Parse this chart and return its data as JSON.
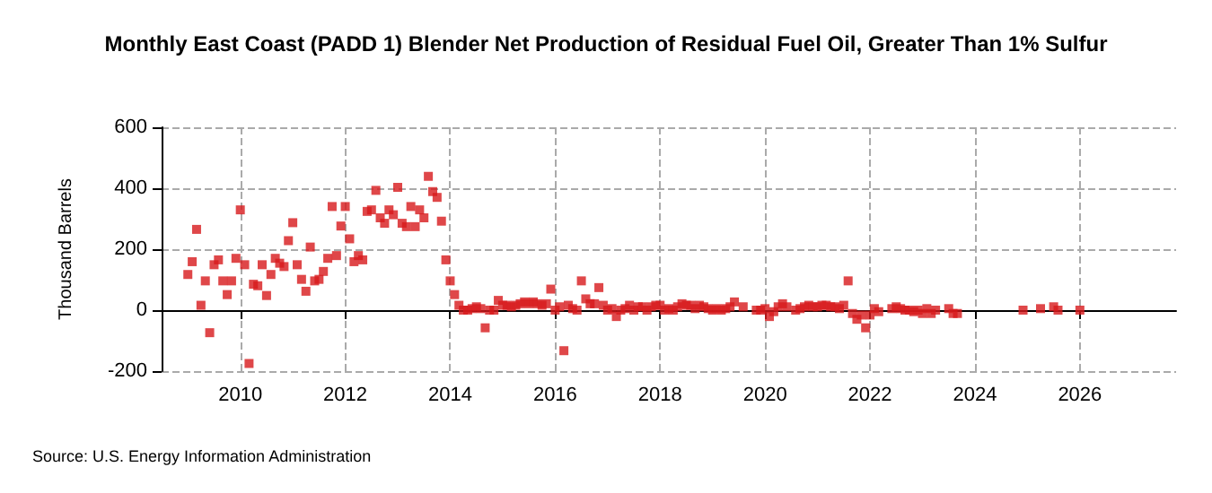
{
  "chart_data": {
    "type": "scatter",
    "title": "Monthly East Coast (PADD 1) Blender Net Production of Residual Fuel Oil, Greater Than 1% Sulfur",
    "ylabel": "Thousand Barrels",
    "annotations": [
      "Source: U.S. Energy Information Administration"
    ],
    "x": [
      "2009-01",
      "2009-02",
      "2009-03",
      "2009-04",
      "2009-05",
      "2009-06",
      "2009-07",
      "2009-08",
      "2009-09",
      "2009-10",
      "2009-11",
      "2009-12",
      "2010-01",
      "2010-02",
      "2010-03",
      "2010-04",
      "2010-05",
      "2010-06",
      "2010-07",
      "2010-08",
      "2010-09",
      "2010-10",
      "2010-11",
      "2010-12",
      "2011-01",
      "2011-02",
      "2011-03",
      "2011-04",
      "2011-05",
      "2011-06",
      "2011-07",
      "2011-08",
      "2011-09",
      "2011-10",
      "2011-11",
      "2011-12",
      "2012-01",
      "2012-02",
      "2012-03",
      "2012-04",
      "2012-05",
      "2012-06",
      "2012-07",
      "2012-08",
      "2012-09",
      "2012-10",
      "2012-11",
      "2012-12",
      "2013-01",
      "2013-02",
      "2013-03",
      "2013-04",
      "2013-05",
      "2013-06",
      "2013-07",
      "2013-08",
      "2013-09",
      "2013-10",
      "2013-11",
      "2013-12",
      "2014-01",
      "2014-02",
      "2014-03",
      "2014-04",
      "2014-05",
      "2014-06",
      "2014-07",
      "2014-08",
      "2014-09",
      "2014-10",
      "2014-11",
      "2014-12",
      "2015-01",
      "2015-02",
      "2015-03",
      "2015-04",
      "2015-05",
      "2015-06",
      "2015-07",
      "2015-08",
      "2015-09",
      "2015-10",
      "2015-11",
      "2015-12",
      "2016-01",
      "2016-02",
      "2016-03",
      "2016-04",
      "2016-05",
      "2016-06",
      "2016-07",
      "2016-08",
      "2016-09",
      "2016-10",
      "2016-11",
      "2016-12",
      "2017-01",
      "2017-02",
      "2017-03",
      "2017-04",
      "2017-05",
      "2017-06",
      "2017-07",
      "2017-08",
      "2017-09",
      "2017-10",
      "2017-11",
      "2017-12",
      "2018-01",
      "2018-02",
      "2018-03",
      "2018-04",
      "2018-05",
      "2018-06",
      "2018-07",
      "2018-08",
      "2018-09",
      "2018-10",
      "2018-11",
      "2018-12",
      "2019-01",
      "2019-02",
      "2019-03",
      "2019-04",
      "2019-05",
      "2019-06",
      "2019-08",
      "2019-11",
      "2019-12",
      "2020-01",
      "2020-02",
      "2020-03",
      "2020-04",
      "2020-05",
      "2020-06",
      "2020-08",
      "2020-09",
      "2020-10",
      "2020-11",
      "2020-12",
      "2021-01",
      "2021-02",
      "2021-03",
      "2021-04",
      "2021-05",
      "2021-06",
      "2021-07",
      "2021-08",
      "2021-09",
      "2021-10",
      "2021-11",
      "2021-12",
      "2022-01",
      "2022-02",
      "2022-03",
      "2022-06",
      "2022-07",
      "2022-08",
      "2022-09",
      "2022-10",
      "2022-11",
      "2022-12",
      "2023-01",
      "2023-02",
      "2023-03",
      "2023-04",
      "2023-07",
      "2023-08",
      "2023-09",
      "2024-12",
      "2025-04",
      "2025-07",
      "2025-08",
      "2026-01"
    ],
    "series": [
      {
        "color": "#d7191c",
        "values": [
          117,
          159,
          265,
          16,
          96,
          -74,
          149,
          165,
          96,
          51,
          96,
          170,
          329,
          149,
          -175,
          85,
          80,
          149,
          48,
          117,
          170,
          154,
          143,
          228,
          287,
          149,
          101,
          62,
          207,
          96,
          101,
          127,
          170,
          340,
          179,
          276,
          340,
          234,
          159,
          179,
          165,
          324,
          329,
          393,
          303,
          285,
          329,
          313,
          403,
          285,
          274,
          340,
          274,
          329,
          303,
          439,
          389,
          370,
          292,
          165,
          96,
          51,
          16,
          0,
          0,
          5,
          11,
          5,
          -58,
          0,
          0,
          32,
          16,
          16,
          11,
          16,
          21,
          27,
          21,
          27,
          21,
          16,
          21,
          69,
          0,
          11,
          -133,
          16,
          5,
          0,
          96,
          37,
          21,
          21,
          74,
          16,
          0,
          5,
          -21,
          0,
          5,
          16,
          0,
          11,
          11,
          0,
          11,
          16,
          16,
          0,
          5,
          0,
          11,
          21,
          16,
          16,
          5,
          16,
          11,
          5,
          0,
          5,
          0,
          5,
          11,
          27,
          11,
          0,
          0,
          5,
          -21,
          -5,
          11,
          21,
          11,
          0,
          5,
          11,
          16,
          11,
          11,
          16,
          16,
          11,
          11,
          5,
          16,
          96,
          -11,
          -30,
          -16,
          -58,
          -16,
          5,
          -5,
          5,
          11,
          5,
          0,
          0,
          -5,
          0,
          -11,
          5,
          -11,
          0,
          5,
          -11,
          -11,
          0,
          5,
          11,
          0,
          0
        ]
      }
    ],
    "xlim": [
      "2008-07",
      "2027-11"
    ],
    "xticks": [
      "2010",
      "2012",
      "2014",
      "2016",
      "2018",
      "2020",
      "2022",
      "2024",
      "2026"
    ],
    "ylim": [
      -200,
      600
    ],
    "yticks": [
      -200,
      0,
      200,
      400,
      600
    ],
    "grid": true,
    "marker": "square"
  }
}
